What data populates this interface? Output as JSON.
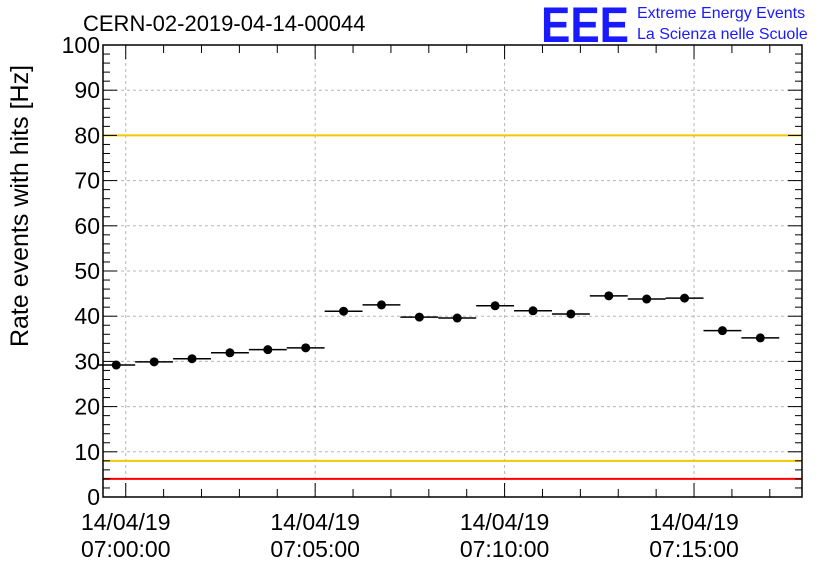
{
  "chart_data": {
    "type": "scatter",
    "title": "CERN-02-2019-04-14-00044",
    "ylabel": "Rate events with hits [Hz]",
    "xlabel": "",
    "ylim": [
      0,
      100
    ],
    "yticks": [
      0,
      10,
      20,
      30,
      40,
      50,
      60,
      70,
      80,
      90,
      100
    ],
    "xlim_minutes": [
      -0.6,
      17.85
    ],
    "x_ticks": [
      {
        "minute": 0,
        "date": "14/04/19",
        "time": "07:00:00"
      },
      {
        "minute": 5,
        "date": "14/04/19",
        "time": "07:05:00"
      },
      {
        "minute": 10,
        "date": "14/04/19",
        "time": "07:10:00"
      },
      {
        "minute": 15,
        "date": "14/04/19",
        "time": "07:15:00"
      }
    ],
    "bin_width_minutes": 1,
    "grid": true,
    "reference_lines": [
      {
        "value": 80,
        "color": "#f2c800"
      },
      {
        "value": 8,
        "color": "#f2c800"
      },
      {
        "value": 4,
        "color": "#ff0000"
      }
    ],
    "series": [
      {
        "x_minutes": [
          -0.25,
          0.75,
          1.75,
          2.75,
          3.75,
          4.75,
          5.75,
          6.75,
          7.75,
          8.75,
          9.75,
          10.75,
          11.75,
          12.75,
          13.75,
          14.75,
          15.75,
          16.75
        ],
        "values": [
          29.2,
          29.9,
          30.6,
          31.9,
          32.6,
          33.0,
          41.1,
          42.5,
          39.8,
          39.6,
          42.3,
          41.2,
          40.5,
          44.5,
          43.8,
          44.0,
          36.8,
          35.2
        ],
        "marker_color": "#000000"
      }
    ]
  },
  "logo": {
    "letters": "EEE",
    "line1": "Extreme Energy Events",
    "line2": "La Scienza nelle Scuole"
  }
}
